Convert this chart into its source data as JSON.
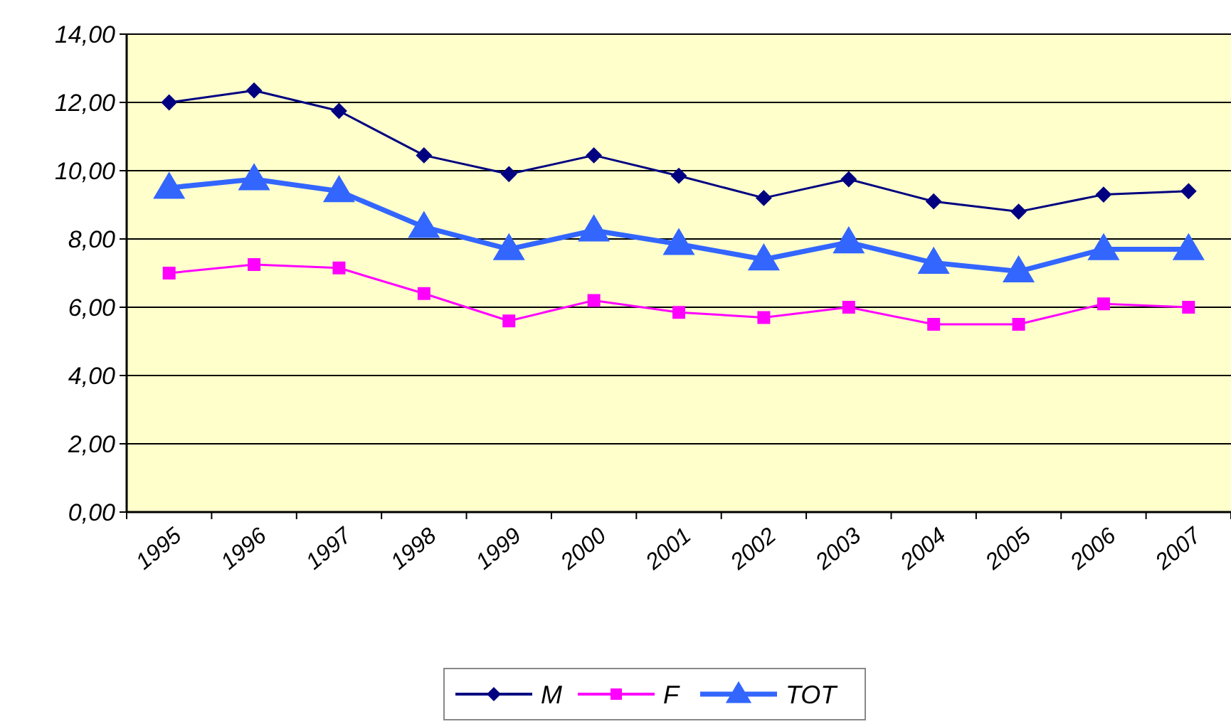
{
  "chart_data": {
    "type": "line",
    "categories": [
      "1995",
      "1996",
      "1997",
      "1998",
      "1999",
      "2000",
      "2001",
      "2002",
      "2003",
      "2004",
      "2005",
      "2006",
      "2007"
    ],
    "ylim": [
      0,
      14
    ],
    "yticks": [
      {
        "value": 0,
        "label": "0,00"
      },
      {
        "value": 2,
        "label": "2,00"
      },
      {
        "value": 4,
        "label": "4,00"
      },
      {
        "value": 6,
        "label": "6,00"
      },
      {
        "value": 8,
        "label": "8,00"
      },
      {
        "value": 10,
        "label": "10,00"
      },
      {
        "value": 12,
        "label": "12,00"
      },
      {
        "value": 14,
        "label": "14,00"
      }
    ],
    "grid": "y",
    "legend": "bottom",
    "series": [
      {
        "name": "M",
        "color": "#000080",
        "marker": "diamond",
        "values": [
          12.0,
          12.35,
          11.75,
          10.45,
          9.9,
          10.45,
          9.85,
          9.2,
          9.75,
          9.1,
          8.8,
          9.3,
          9.4
        ]
      },
      {
        "name": "F",
        "color": "#ff00ff",
        "marker": "square",
        "values": [
          7.0,
          7.25,
          7.15,
          6.4,
          5.6,
          6.2,
          5.85,
          5.7,
          6.0,
          5.5,
          5.5,
          6.1,
          6.0
        ]
      },
      {
        "name": "TOT",
        "color": "#3366ff",
        "marker": "triangle",
        "values": [
          9.5,
          9.75,
          9.4,
          8.35,
          7.7,
          8.25,
          7.85,
          7.4,
          7.9,
          7.3,
          7.05,
          7.7,
          7.7
        ]
      }
    ]
  }
}
